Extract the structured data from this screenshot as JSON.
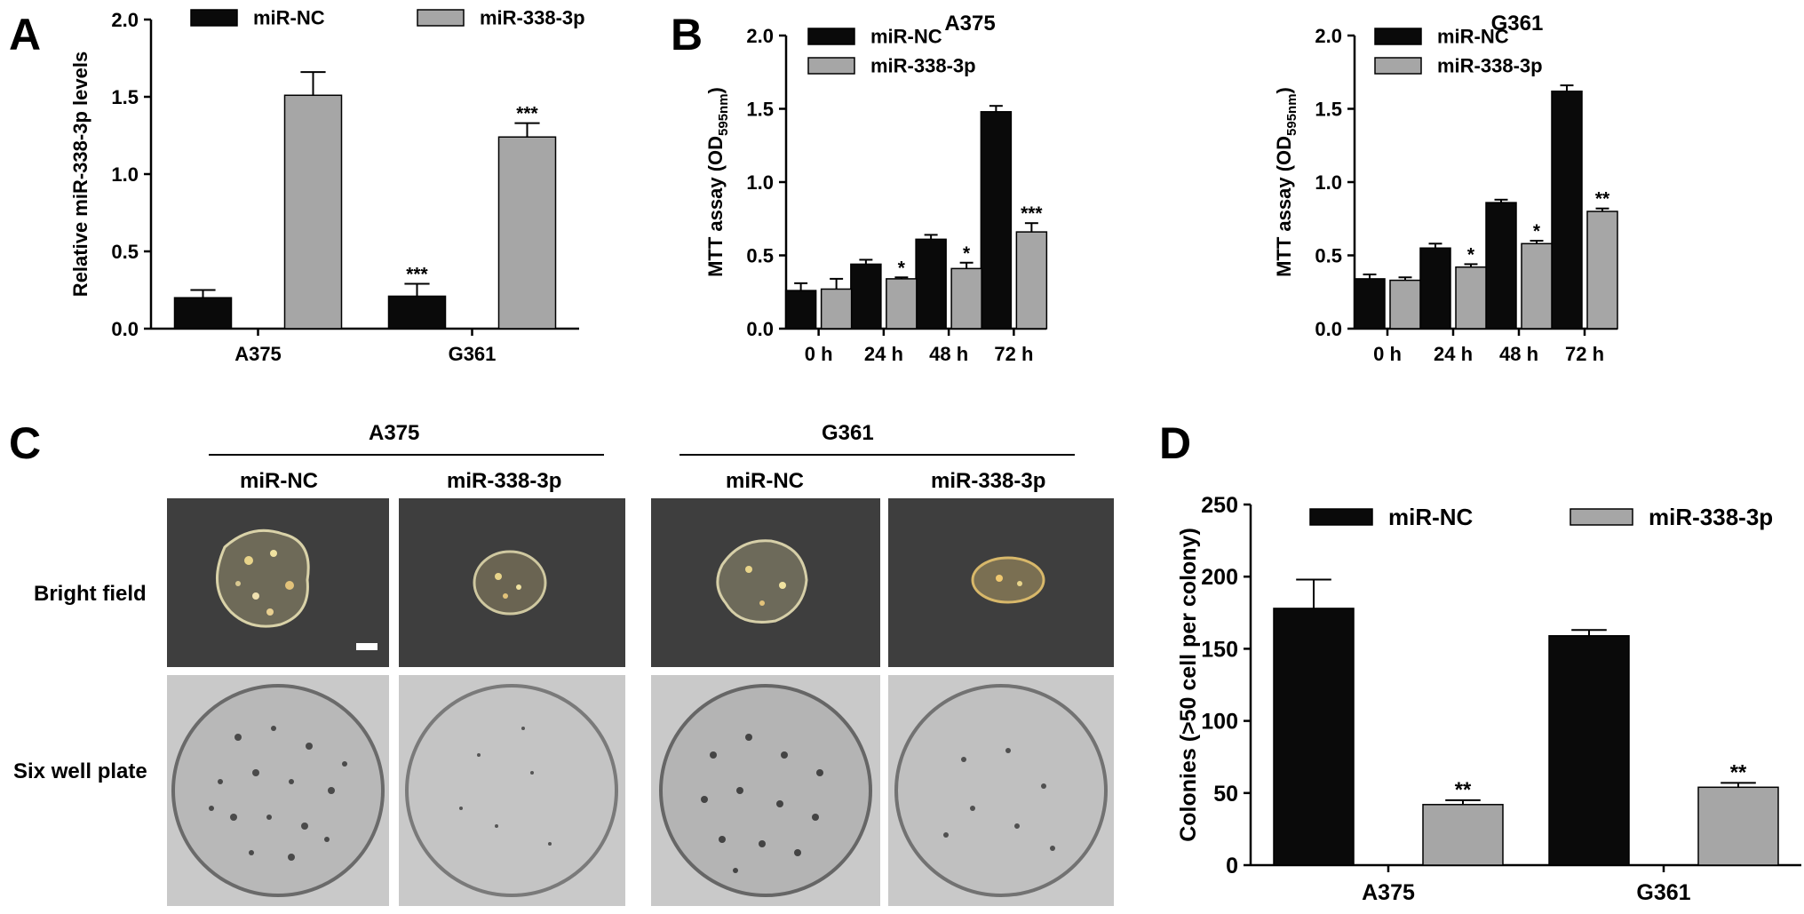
{
  "panels": {
    "A": "A",
    "B": "B",
    "C": "C",
    "D": "D"
  },
  "colors": {
    "nc": "#0a0a0a",
    "mir": "#a6a6a6"
  },
  "chart_data": [
    {
      "id": "A",
      "type": "bar",
      "title": "",
      "categories": [
        "A375",
        "G361"
      ],
      "series": [
        {
          "name": "miR-NC",
          "values": [
            0.2,
            0.21
          ],
          "errors": [
            0.05,
            0.08
          ]
        },
        {
          "name": "miR-338-3p",
          "values": [
            1.51,
            1.24
          ],
          "errors": [
            0.15,
            0.09
          ]
        }
      ],
      "significance": [
        [
          "",
          "***"
        ],
        [
          "",
          "***"
        ]
      ],
      "ylabel": "Relative miR-338-3p levels",
      "xlabel": "",
      "ylim": [
        0,
        2.0
      ],
      "yticks": [
        "0.0",
        "0.5",
        "1.0",
        "1.5",
        "2.0"
      ],
      "legend_position": "top"
    },
    {
      "id": "B1",
      "type": "bar",
      "title": "A375",
      "categories": [
        "0 h",
        "24 h",
        "48 h",
        "72 h"
      ],
      "series": [
        {
          "name": "miR-NC",
          "values": [
            0.26,
            0.44,
            0.61,
            1.48
          ],
          "errors": [
            0.05,
            0.03,
            0.03,
            0.04
          ]
        },
        {
          "name": "miR-338-3p",
          "values": [
            0.27,
            0.34,
            0.41,
            0.66
          ],
          "errors": [
            0.07,
            0.01,
            0.04,
            0.06
          ]
        }
      ],
      "significance": [
        [
          "",
          "",
          "",
          ""
        ],
        [
          "",
          "*",
          "*",
          "***"
        ]
      ],
      "ylabel": "MTT assay (OD595nm)",
      "ylabel_main": "MTT assay (OD",
      "ylabel_sub": "595nm",
      "ylabel_end": ")",
      "xlabel": "",
      "ylim": [
        0,
        2.0
      ],
      "yticks": [
        "0.0",
        "0.5",
        "1.0",
        "1.5",
        "2.0"
      ],
      "legend_position": "top-left"
    },
    {
      "id": "B2",
      "type": "bar",
      "title": "G361",
      "categories": [
        "0 h",
        "24 h",
        "48 h",
        "72 h"
      ],
      "series": [
        {
          "name": "miR-NC",
          "values": [
            0.34,
            0.55,
            0.86,
            1.62
          ],
          "errors": [
            0.03,
            0.03,
            0.02,
            0.04
          ]
        },
        {
          "name": "miR-338-3p",
          "values": [
            0.33,
            0.42,
            0.58,
            0.8
          ],
          "errors": [
            0.02,
            0.02,
            0.02,
            0.02
          ]
        }
      ],
      "significance": [
        [
          "",
          "",
          "",
          ""
        ],
        [
          "",
          "*",
          "*",
          "**"
        ]
      ],
      "ylabel": "MTT assay (OD595nm)",
      "ylabel_main": "MTT assay (OD",
      "ylabel_sub": "595nm",
      "ylabel_end": ")",
      "xlabel": "",
      "ylim": [
        0,
        2.0
      ],
      "yticks": [
        "0.0",
        "0.5",
        "1.0",
        "1.5",
        "2.0"
      ],
      "legend_position": "top-left"
    },
    {
      "id": "D",
      "type": "bar",
      "title": "",
      "categories": [
        "A375",
        "G361"
      ],
      "series": [
        {
          "name": "miR-NC",
          "values": [
            178,
            159
          ],
          "errors": [
            20,
            4
          ]
        },
        {
          "name": "miR-338-3p",
          "values": [
            42,
            54
          ],
          "errors": [
            3,
            3
          ]
        }
      ],
      "significance": [
        [
          "",
          ""
        ],
        [
          "**",
          "**"
        ]
      ],
      "ylabel": "Colonies (>50 cell per colony)",
      "xlabel": "",
      "ylim": [
        0,
        250
      ],
      "yticks": [
        "0",
        "50",
        "100",
        "150",
        "200",
        "250"
      ],
      "legend_position": "top"
    }
  ],
  "panel_c": {
    "groups": [
      "A375",
      "G361"
    ],
    "columns": [
      "miR-NC",
      "miR-338-3p",
      "miR-NC",
      "miR-338-3p"
    ],
    "rows": [
      "Bright field",
      "Six well plate"
    ]
  }
}
